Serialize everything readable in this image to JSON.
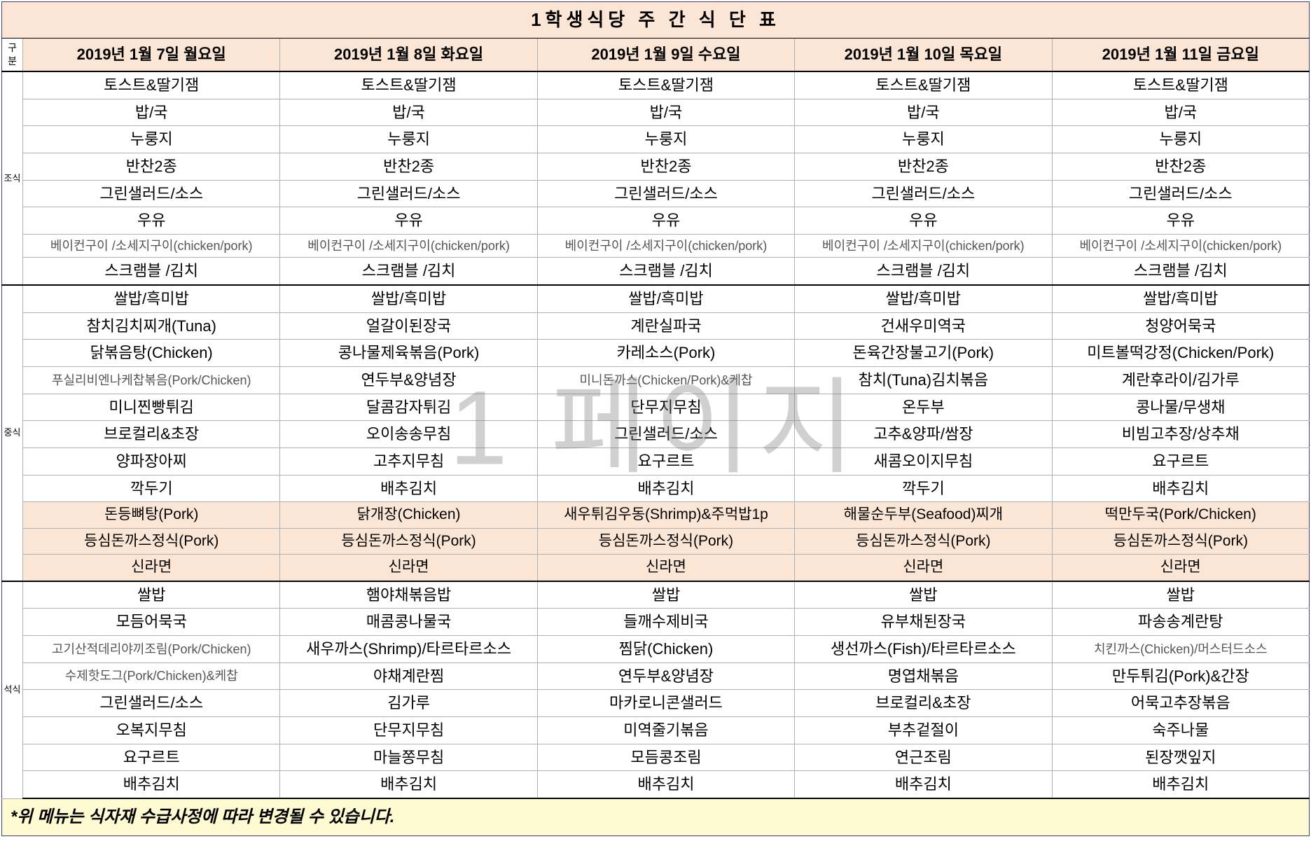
{
  "title": "1학생식당 주 간 식 단 표",
  "gubun_label": "구분",
  "watermark": "1 페이지",
  "footer_note": "*위 메뉴는 식자재 수급사정에 따라 변경될 수 있습니다.",
  "colors": {
    "header_bg": "#fbe6d5",
    "special_bg": "#fbe6d5",
    "footer_bg": "#fefad2",
    "border": "#b0b0b0",
    "outer_border": "#404080",
    "thick_border": "#000000"
  },
  "days": [
    "2019년 1월 7일 월요일",
    "2019년 1월 8일 화요일",
    "2019년 1월 9일 수요일",
    "2019년 1월 10일 목요일",
    "2019년 1월 11일 금요일"
  ],
  "sections": [
    {
      "label": "조식",
      "rows": [
        {
          "cells": [
            "토스트&딸기잼",
            "토스트&딸기잼",
            "토스트&딸기잼",
            "토스트&딸기잼",
            "토스트&딸기잼"
          ]
        },
        {
          "cells": [
            "밥/국",
            "밥/국",
            "밥/국",
            "밥/국",
            "밥/국"
          ]
        },
        {
          "cells": [
            "누룽지",
            "누룽지",
            "누룽지",
            "누룽지",
            "누룽지"
          ]
        },
        {
          "cells": [
            "반찬2종",
            "반찬2종",
            "반찬2종",
            "반찬2종",
            "반찬2종"
          ]
        },
        {
          "cells": [
            "그린샐러드/소스",
            "그린샐러드/소스",
            "그린샐러드/소스",
            "그린샐러드/소스",
            "그린샐러드/소스"
          ]
        },
        {
          "cells": [
            "우유",
            "우유",
            "우유",
            "우유",
            "우유"
          ]
        },
        {
          "small": true,
          "cells": [
            "베이컨구이 /소세지구이(chicken/pork)",
            "베이컨구이 /소세지구이(chicken/pork)",
            "베이컨구이 /소세지구이(chicken/pork)",
            "베이컨구이 /소세지구이(chicken/pork)",
            "베이컨구이 /소세지구이(chicken/pork)"
          ]
        },
        {
          "cells": [
            "스크램블 /김치",
            "스크램블 /김치",
            "스크램블 /김치",
            "스크램블 /김치",
            "스크램블 /김치"
          ]
        }
      ]
    },
    {
      "label": "중식",
      "rows": [
        {
          "cells": [
            "쌀밥/흑미밥",
            "쌀밥/흑미밥",
            "쌀밥/흑미밥",
            "쌀밥/흑미밥",
            "쌀밥/흑미밥"
          ]
        },
        {
          "cells": [
            "참치김치찌개(Tuna)",
            "얼갈이된장국",
            "계란실파국",
            "건새우미역국",
            "청양어묵국"
          ]
        },
        {
          "cells": [
            "닭볶음탕(Chicken)",
            "콩나물제육볶음(Pork)",
            "카레소스(Pork)",
            "돈육간장불고기(Pork)",
            "미트볼떡강정(Chicken/Pork)"
          ]
        },
        {
          "cells": [
            "푸실리비엔나케찹볶음(Pork/Chicken)",
            "연두부&양념장",
            "미니돈까스(Chicken/Pork)&케찹",
            "참치(Tuna)김치볶음",
            "계란후라이/김가루"
          ],
          "small_cols": [
            0,
            2
          ]
        },
        {
          "cells": [
            "미니찐빵튀김",
            "달콤감자튀김",
            "단무지무침",
            "온두부",
            "콩나물/무생채"
          ]
        },
        {
          "cells": [
            "브로컬리&초장",
            "오이송송무침",
            "그린샐러드/소스",
            "고추&양파/쌈장",
            "비빔고추장/상추채"
          ]
        },
        {
          "cells": [
            "양파장아찌",
            "고추지무침",
            "요구르트",
            "새콤오이지무침",
            "요구르트"
          ]
        },
        {
          "cells": [
            "깍두기",
            "배추김치",
            "배추김치",
            "깍두기",
            "배추김치"
          ]
        },
        {
          "special": true,
          "cells": [
            "돈등뼈탕(Pork)",
            "닭개장(Chicken)",
            "새우튀김우동(Shrimp)&주먹밥1p",
            "해물순두부(Seafood)찌개",
            "떡만두국(Pork/Chicken)"
          ]
        },
        {
          "special": true,
          "cells": [
            "등심돈까스정식(Pork)",
            "등심돈까스정식(Pork)",
            "등심돈까스정식(Pork)",
            "등심돈까스정식(Pork)",
            "등심돈까스정식(Pork)"
          ]
        },
        {
          "special": true,
          "special_last": true,
          "cells": [
            "신라면",
            "신라면",
            "신라면",
            "신라면",
            "신라면"
          ]
        }
      ]
    },
    {
      "label": "석식",
      "rows": [
        {
          "cells": [
            "쌀밥",
            "햄야채볶음밥",
            "쌀밥",
            "쌀밥",
            "쌀밥"
          ]
        },
        {
          "cells": [
            "모듬어묵국",
            "매콤콩나물국",
            "들깨수제비국",
            "유부채된장국",
            "파송송계란탕"
          ]
        },
        {
          "cells": [
            "고기산적데리야끼조림(Pork/Chicken)",
            "새우까스(Shrimp)/타르타르소스",
            "찜닭(Chicken)",
            "생선까스(Fish)/타르타르소스",
            "치킨까스(Chicken)/머스터드소스"
          ],
          "small_cols": [
            0,
            4
          ]
        },
        {
          "cells": [
            "수제핫도그(Pork/Chicken)&케찹",
            "야채계란찜",
            "연두부&양념장",
            "명엽채볶음",
            "만두튀김(Pork)&간장"
          ],
          "small_cols": [
            0
          ]
        },
        {
          "cells": [
            "그린샐러드/소스",
            "김가루",
            "마카로니콘샐러드",
            "브로컬리&초장",
            "어묵고추장볶음"
          ]
        },
        {
          "cells": [
            "오복지무침",
            "단무지무침",
            "미역줄기볶음",
            "부추겉절이",
            "숙주나물"
          ]
        },
        {
          "cells": [
            "요구르트",
            "마늘쫑무침",
            "모듬콩조림",
            "연근조림",
            "된장깻잎지"
          ]
        },
        {
          "cells": [
            "배추김치",
            "배추김치",
            "배추김치",
            "배추김치",
            "배추김치"
          ]
        }
      ]
    }
  ]
}
